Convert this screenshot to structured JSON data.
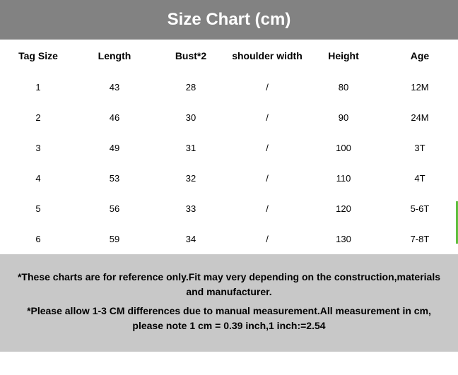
{
  "header": {
    "title": "Size Chart (cm)",
    "background_color": "#828282",
    "text_color": "#ffffff",
    "font_size": 24,
    "font_weight": "bold"
  },
  "table": {
    "type": "table",
    "background_color": "#ffffff",
    "text_color": "#000000",
    "header_font_size": 14,
    "cell_font_size": 13,
    "columns": [
      "Tag Size",
      "Length",
      "Bust*2",
      "shoulder width",
      "Height",
      "Age"
    ],
    "rows": [
      [
        "1",
        "43",
        "28",
        "/",
        "80",
        "12M"
      ],
      [
        "2",
        "46",
        "30",
        "/",
        "90",
        "24M"
      ],
      [
        "3",
        "49",
        "31",
        "/",
        "100",
        "3T"
      ],
      [
        "4",
        "53",
        "32",
        "/",
        "110",
        "4T"
      ],
      [
        "5",
        "56",
        "33",
        "/",
        "120",
        "5-6T"
      ],
      [
        "6",
        "59",
        "34",
        "/",
        "130",
        "7-8T"
      ]
    ]
  },
  "footer": {
    "background_color": "#c8c8c8",
    "text_color": "#000000",
    "font_size": 14,
    "font_weight": "bold",
    "note1": "*These charts are for reference only.Fit may very depending on the construction,materials and manufacturer.",
    "note2": "*Please allow 1-3 CM differences due to manual measurement.All measurement in cm, please note 1 cm = 0.39 inch,1 inch:=2.54"
  },
  "accent": {
    "green_bar_color": "#5fbf3f"
  }
}
